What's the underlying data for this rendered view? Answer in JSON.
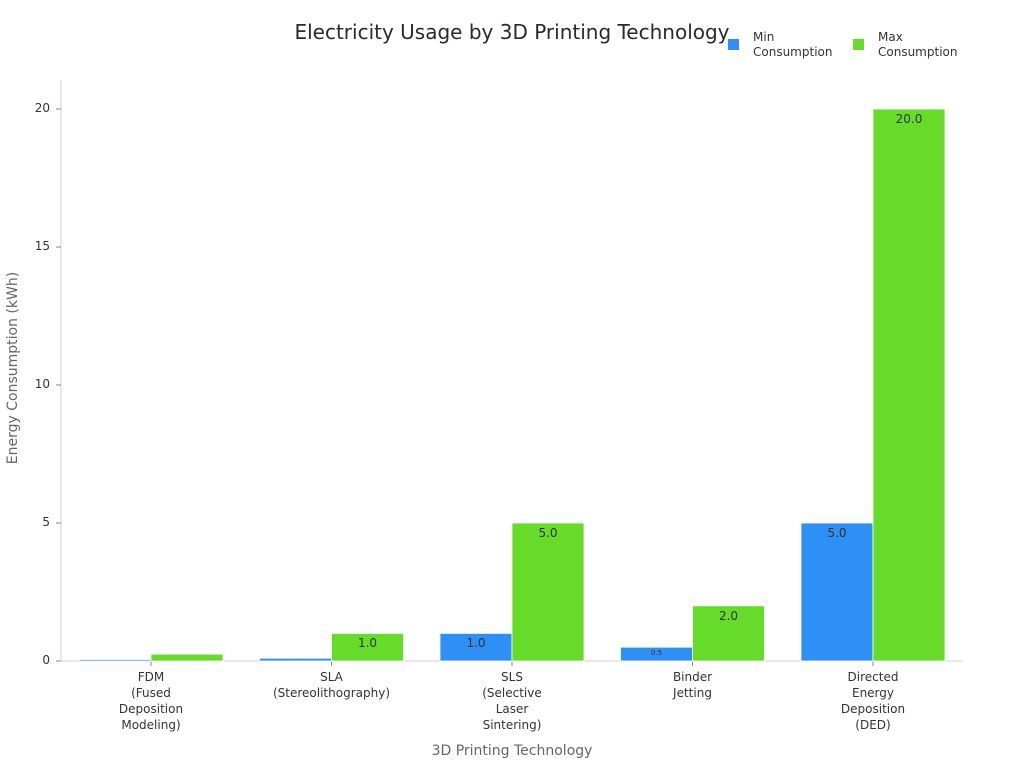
{
  "chart_data": {
    "type": "bar",
    "title": "Electricity Usage by 3D Printing Technology",
    "xlabel": "3D Printing Technology",
    "ylabel": "Energy Consumption (kWh)",
    "ylim": [
      0,
      20
    ],
    "yticks": [
      0,
      5,
      10,
      15,
      20
    ],
    "grid": false,
    "legend_position": "top-right",
    "categories": [
      "FDM\n(Fused\nDeposition\nModeling)",
      "SLA\n(Stereolithography)",
      "SLS\n(Selective\nLaser\nSintering)",
      "Binder\nJetting",
      "Directed\nEnergy\nDeposition\n(DED)"
    ],
    "series": [
      {
        "name": "Min\nConsumption",
        "color": "#2e90f5",
        "values": [
          0.05,
          0.1,
          1.0,
          0.5,
          5.0
        ],
        "labels": [
          "",
          "",
          "1.0",
          "0.5",
          "5.0"
        ]
      },
      {
        "name": "Max\nConsumption",
        "color": "#66db29",
        "values": [
          0.25,
          1.0,
          5.0,
          2.0,
          20.0
        ],
        "labels": [
          "",
          "1.0",
          "5.0",
          "2.0",
          "20.0"
        ]
      }
    ]
  }
}
